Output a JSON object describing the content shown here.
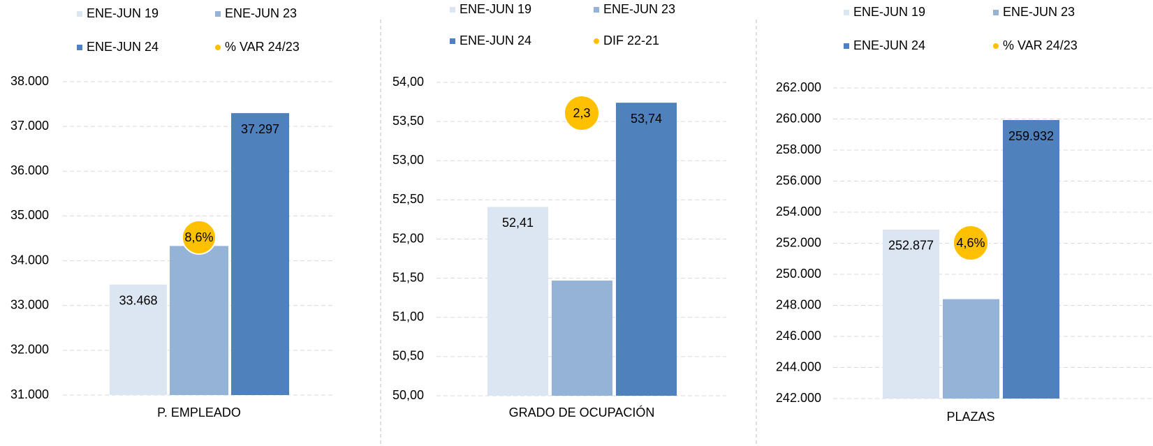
{
  "chart_data": [
    {
      "type": "bar",
      "categories": [
        "P. EMPLEADO"
      ],
      "series": [
        {
          "name": "ENE-JUN 19",
          "color": "#dce6f2",
          "values": [
            33468
          ],
          "value_labels": [
            "33.468"
          ]
        },
        {
          "name": "ENE-JUN 23",
          "color": "#95b3d7",
          "values": [
            34330
          ]
        },
        {
          "name": "ENE-JUN 24",
          "color": "#4f81bd",
          "values": [
            37297
          ],
          "value_labels": [
            "37.297"
          ]
        },
        {
          "name": "% VAR 24/23",
          "color": "#ffc000",
          "values": [
            8.6
          ],
          "value_labels": [
            "8,6%"
          ]
        }
      ],
      "ylim": [
        31000,
        38000
      ],
      "yticks": [
        {
          "value": 31000,
          "label": "31.000"
        },
        {
          "value": 32000,
          "label": "32.000"
        },
        {
          "value": 33000,
          "label": "33.000"
        },
        {
          "value": 34000,
          "label": "34.000"
        },
        {
          "value": 35000,
          "label": "35.000"
        },
        {
          "value": 36000,
          "label": "36.000"
        },
        {
          "value": 37000,
          "label": "37.000"
        },
        {
          "value": 38000,
          "label": "38.000"
        }
      ],
      "grid": true
    },
    {
      "type": "bar",
      "categories": [
        "GRADO DE OCUPACIÓN"
      ],
      "series": [
        {
          "name": "ENE-JUN 19",
          "color": "#dce6f2",
          "values": [
            52.41
          ],
          "value_labels": [
            "52,41"
          ]
        },
        {
          "name": "ENE-JUN 23",
          "color": "#95b3d7",
          "values": [
            51.47
          ]
        },
        {
          "name": "ENE-JUN 24",
          "color": "#4f81bd",
          "values": [
            53.74
          ],
          "value_labels": [
            "53,74"
          ]
        },
        {
          "name": "DIF 22-21",
          "color": "#ffc000",
          "values": [
            2.3
          ],
          "value_labels": [
            "2,3"
          ]
        }
      ],
      "ylim": [
        50,
        54
      ],
      "yticks": [
        {
          "value": 50,
          "label": "50,00"
        },
        {
          "value": 50.5,
          "label": "50,50"
        },
        {
          "value": 51,
          "label": "51,00"
        },
        {
          "value": 51.5,
          "label": "51,50"
        },
        {
          "value": 52,
          "label": "52,00"
        },
        {
          "value": 52.5,
          "label": "52,50"
        },
        {
          "value": 53,
          "label": "53,00"
        },
        {
          "value": 53.5,
          "label": "53,50"
        },
        {
          "value": 54,
          "label": "54,00"
        }
      ],
      "grid": true
    },
    {
      "type": "bar",
      "categories": [
        "PLAZAS"
      ],
      "series": [
        {
          "name": "ENE-JUN 19",
          "color": "#dce6f2",
          "values": [
            252877
          ],
          "value_labels": [
            "252.877"
          ]
        },
        {
          "name": "ENE-JUN 23",
          "color": "#95b3d7",
          "values": [
            248400
          ]
        },
        {
          "name": "ENE-JUN 24",
          "color": "#4f81bd",
          "values": [
            259932
          ],
          "value_labels": [
            "259.932"
          ]
        },
        {
          "name": "% VAR 24/23",
          "color": "#ffc000",
          "values": [
            4.6
          ],
          "value_labels": [
            "4,6%"
          ]
        }
      ],
      "ylim": [
        242000,
        262000
      ],
      "yticks": [
        {
          "value": 242000,
          "label": "242.000"
        },
        {
          "value": 244000,
          "label": "244.000"
        },
        {
          "value": 246000,
          "label": "246.000"
        },
        {
          "value": 248000,
          "label": "248.000"
        },
        {
          "value": 250000,
          "label": "250.000"
        },
        {
          "value": 252000,
          "label": "252.000"
        },
        {
          "value": 254000,
          "label": "254.000"
        },
        {
          "value": 256000,
          "label": "256.000"
        },
        {
          "value": 258000,
          "label": "258.000"
        },
        {
          "value": 260000,
          "label": "260.000"
        },
        {
          "value": 262000,
          "label": "262.000"
        }
      ],
      "grid": true
    }
  ]
}
